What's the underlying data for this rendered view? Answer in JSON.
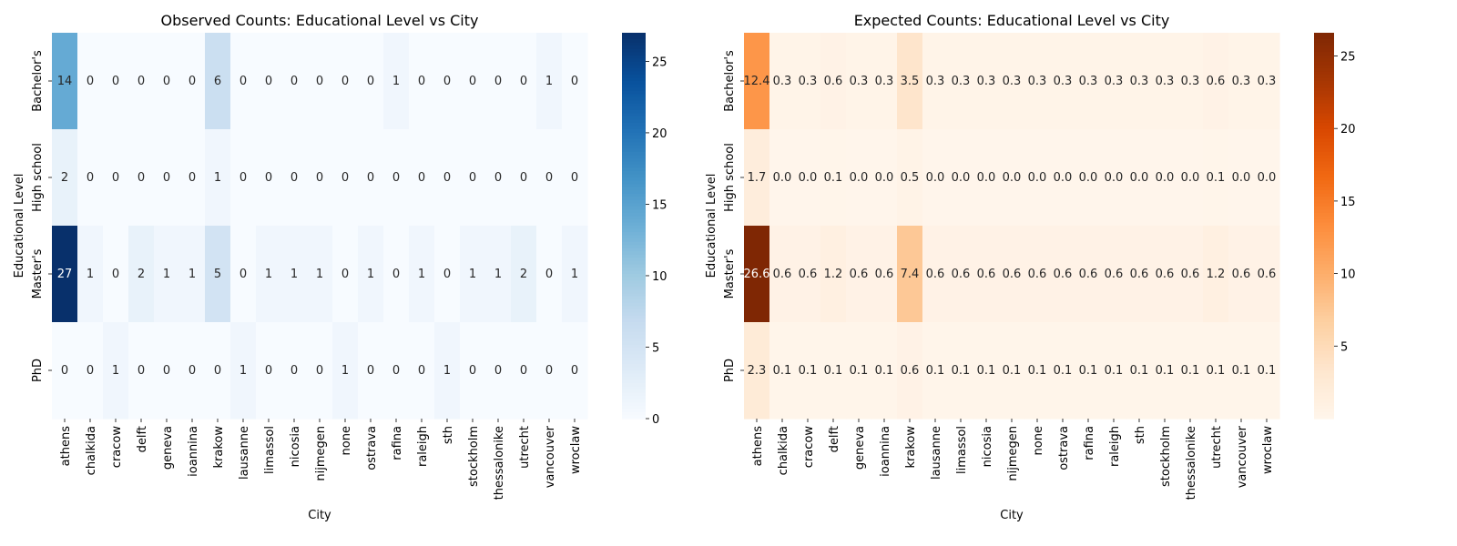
{
  "chart_data": [
    {
      "type": "heatmap",
      "title": "Observed Counts: Educational Level vs City",
      "xlabel": "City",
      "ylabel": "Educational Level",
      "x": [
        "athens",
        "chalkida",
        "cracow",
        "delft",
        "geneva",
        "ioannina",
        "krakow",
        "lausanne",
        "limassol",
        "nicosia",
        "nijmegen",
        "none",
        "ostrava",
        "rafina",
        "raleigh",
        "sth",
        "stockholm",
        "thessalonike",
        "utrecht",
        "vancouver",
        "wroclaw"
      ],
      "y": [
        "Bachelor's",
        "High school",
        "Master's",
        "PhD"
      ],
      "values": [
        [
          14,
          0,
          0,
          0,
          0,
          0,
          6,
          0,
          0,
          0,
          0,
          0,
          0,
          1,
          0,
          0,
          0,
          0,
          0,
          1,
          0
        ],
        [
          2,
          0,
          0,
          0,
          0,
          0,
          1,
          0,
          0,
          0,
          0,
          0,
          0,
          0,
          0,
          0,
          0,
          0,
          0,
          0,
          0
        ],
        [
          27,
          1,
          0,
          2,
          1,
          1,
          5,
          0,
          1,
          1,
          1,
          0,
          1,
          0,
          1,
          0,
          1,
          1,
          2,
          0,
          1
        ],
        [
          0,
          0,
          1,
          0,
          0,
          0,
          0,
          1,
          0,
          0,
          0,
          1,
          0,
          0,
          0,
          1,
          0,
          0,
          0,
          0,
          0
        ]
      ],
      "labels": [
        [
          "14",
          "0",
          "0",
          "0",
          "0",
          "0",
          "6",
          "0",
          "0",
          "0",
          "0",
          "0",
          "0",
          "1",
          "0",
          "0",
          "0",
          "0",
          "0",
          "1",
          "0"
        ],
        [
          "2",
          "0",
          "0",
          "0",
          "0",
          "0",
          "1",
          "0",
          "0",
          "0",
          "0",
          "0",
          "0",
          "0",
          "0",
          "0",
          "0",
          "0",
          "0",
          "0",
          "0"
        ],
        [
          "27",
          "1",
          "0",
          "2",
          "1",
          "1",
          "5",
          "0",
          "1",
          "1",
          "1",
          "0",
          "1",
          "0",
          "1",
          "0",
          "1",
          "1",
          "2",
          "0",
          "1"
        ],
        [
          "0",
          "0",
          "1",
          "0",
          "0",
          "0",
          "0",
          "1",
          "0",
          "0",
          "0",
          "1",
          "0",
          "0",
          "0",
          "1",
          "0",
          "0",
          "0",
          "0",
          "0"
        ]
      ],
      "colormap": "Blues",
      "color_range": [
        0,
        27
      ],
      "colorbar_ticks": [
        0,
        5,
        10,
        15,
        20,
        25
      ]
    },
    {
      "type": "heatmap",
      "title": "Expected Counts: Educational Level vs City",
      "xlabel": "City",
      "ylabel": "Educational Level",
      "x": [
        "athens",
        "chalkida",
        "cracow",
        "delft",
        "geneva",
        "ioannina",
        "krakow",
        "lausanne",
        "limassol",
        "nicosia",
        "nijmegen",
        "none",
        "ostrava",
        "rafina",
        "raleigh",
        "sth",
        "stockholm",
        "thessalonike",
        "utrecht",
        "vancouver",
        "wroclaw"
      ],
      "y": [
        "Bachelor's",
        "High school",
        "Master's",
        "PhD"
      ],
      "values": [
        [
          12.4,
          0.3,
          0.3,
          0.6,
          0.3,
          0.3,
          3.5,
          0.3,
          0.3,
          0.3,
          0.3,
          0.3,
          0.3,
          0.3,
          0.3,
          0.3,
          0.3,
          0.3,
          0.6,
          0.3,
          0.3
        ],
        [
          1.7,
          0.0,
          0.0,
          0.1,
          0.0,
          0.0,
          0.5,
          0.0,
          0.0,
          0.0,
          0.0,
          0.0,
          0.0,
          0.0,
          0.0,
          0.0,
          0.0,
          0.0,
          0.1,
          0.0,
          0.0
        ],
        [
          26.6,
          0.6,
          0.6,
          1.2,
          0.6,
          0.6,
          7.4,
          0.6,
          0.6,
          0.6,
          0.6,
          0.6,
          0.6,
          0.6,
          0.6,
          0.6,
          0.6,
          0.6,
          1.2,
          0.6,
          0.6
        ],
        [
          2.3,
          0.1,
          0.1,
          0.1,
          0.1,
          0.1,
          0.6,
          0.1,
          0.1,
          0.1,
          0.1,
          0.1,
          0.1,
          0.1,
          0.1,
          0.1,
          0.1,
          0.1,
          0.1,
          0.1,
          0.1
        ]
      ],
      "labels": [
        [
          "12.4",
          "0.3",
          "0.3",
          "0.6",
          "0.3",
          "0.3",
          "3.5",
          "0.3",
          "0.3",
          "0.3",
          "0.3",
          "0.3",
          "0.3",
          "0.3",
          "0.3",
          "0.3",
          "0.3",
          "0.3",
          "0.6",
          "0.3",
          "0.3"
        ],
        [
          "1.7",
          "0.0",
          "0.0",
          "0.1",
          "0.0",
          "0.0",
          "0.5",
          "0.0",
          "0.0",
          "0.0",
          "0.0",
          "0.0",
          "0.0",
          "0.0",
          "0.0",
          "0.0",
          "0.0",
          "0.0",
          "0.1",
          "0.0",
          "0.0"
        ],
        [
          "26.6",
          "0.6",
          "0.6",
          "1.2",
          "0.6",
          "0.6",
          "7.4",
          "0.6",
          "0.6",
          "0.6",
          "0.6",
          "0.6",
          "0.6",
          "0.6",
          "0.6",
          "0.6",
          "0.6",
          "0.6",
          "1.2",
          "0.6",
          "0.6"
        ],
        [
          "2.3",
          "0.1",
          "0.1",
          "0.1",
          "0.1",
          "0.1",
          "0.6",
          "0.1",
          "0.1",
          "0.1",
          "0.1",
          "0.1",
          "0.1",
          "0.1",
          "0.1",
          "0.1",
          "0.1",
          "0.1",
          "0.1",
          "0.1",
          "0.1"
        ]
      ],
      "colormap": "Oranges",
      "color_range": [
        0.0,
        26.6
      ],
      "colorbar_ticks": [
        5,
        10,
        15,
        20,
        25
      ]
    }
  ]
}
